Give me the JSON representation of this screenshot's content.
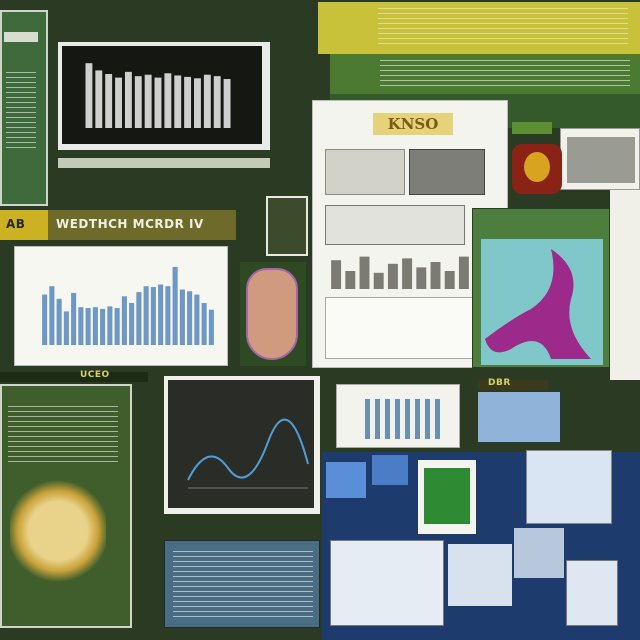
{
  "scene": {
    "description_none": "",
    "colors": {
      "background": "#2b3a22",
      "green_panel": "#3f5e2b",
      "dark_panel": "#1f221d",
      "blue_tile": "#3d6fb8",
      "paper": "#f4f4ee",
      "accent_yellow": "#d4b624",
      "teal": "#7fc7c9",
      "magenta": "#9b2a8a"
    }
  },
  "labels": {
    "left_banner": "AB",
    "mid_banner": "WEDTHCH MCRDR IV",
    "top_right_banner": "",
    "doc_header": "KNSO",
    "bottom_left_banner": "UCEO",
    "bottom_center_label": "DBR"
  },
  "charts": {
    "topleft_bars": [
      0.9,
      0.8,
      0.75,
      0.7,
      0.78,
      0.72,
      0.74,
      0.7,
      0.76,
      0.73,
      0.71,
      0.69,
      0.74,
      0.72,
      0.68
    ],
    "left_blue_bars": [
      0.6,
      0.7,
      0.55,
      0.4,
      0.62,
      0.45,
      0.44,
      0.45,
      0.43,
      0.46,
      0.44,
      0.58,
      0.5,
      0.63,
      0.7,
      0.69,
      0.72,
      0.7,
      0.93,
      0.66,
      0.64,
      0.6,
      0.5,
      0.42
    ],
    "center_doc_bars": [
      0.8,
      0.5,
      0.9,
      0.45,
      0.7,
      0.85,
      0.6,
      0.75,
      0.5,
      0.9
    ]
  },
  "icons": {
    "top_right_pepper": "pepper-icon",
    "hand_image": "hand-icon",
    "sunflower_image": "sunflower-icon",
    "teal_map": "map-icon"
  }
}
